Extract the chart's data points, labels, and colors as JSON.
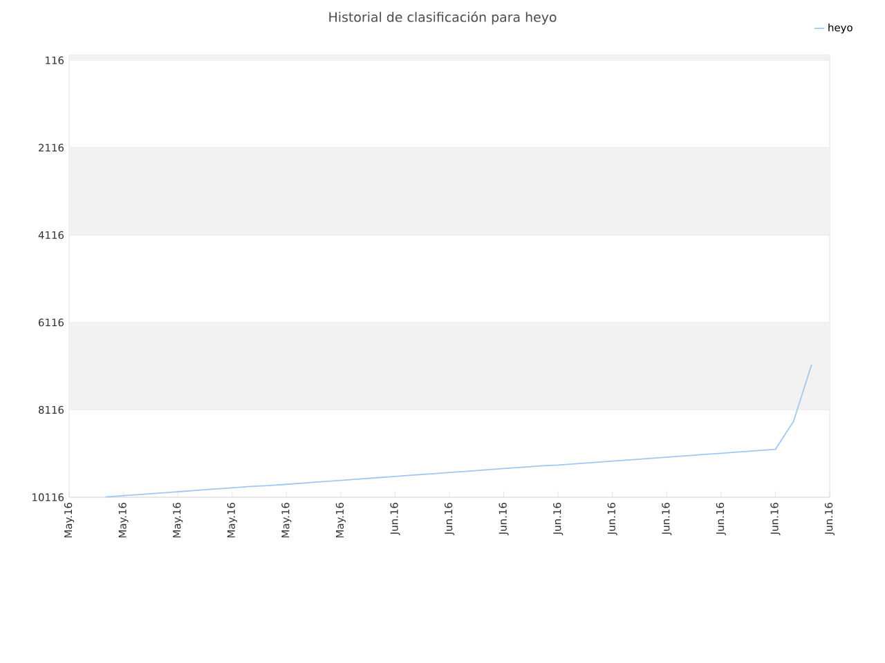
{
  "chart_data": {
    "type": "line",
    "title": "Historial de clasificación para heyo",
    "categories": [
      "May.16",
      null,
      null,
      "May.16",
      null,
      null,
      "May.16",
      null,
      null,
      "May.16",
      null,
      null,
      "May.16",
      null,
      null,
      "May.16",
      null,
      null,
      "Jun.16",
      null,
      null,
      "Jun.16",
      null,
      null,
      "Jun.16",
      null,
      null,
      "Jun.16",
      null,
      null,
      "Jun.16",
      null,
      null,
      "Jun.16",
      null,
      null,
      "Jun.16",
      null,
      null,
      "Jun.16",
      null,
      null,
      "Jun.16"
    ],
    "series": [
      {
        "name": "heyo",
        "color": "#9fc8f2",
        "values": [
          null,
          null,
          10110,
          10080,
          10050,
          10020,
          9990,
          9960,
          9930,
          9900,
          9870,
          9850,
          9820,
          9790,
          9760,
          9730,
          9700,
          9670,
          9640,
          9610,
          9580,
          9550,
          9520,
          9490,
          9460,
          9430,
          9400,
          9380,
          9350,
          9320,
          9290,
          9260,
          9230,
          9200,
          9170,
          9140,
          9110,
          9080,
          9050,
          9020,
          8380,
          7080,
          null
        ]
      }
    ],
    "ylim": [
      10116,
      0
    ],
    "yticks": [
      116,
      2116,
      4116,
      6116,
      8116,
      10116
    ],
    "bands": [
      {
        "axis": "y",
        "from": 0,
        "to": 116,
        "color": "#f2f2f2"
      },
      {
        "axis": "y",
        "from": 2116,
        "to": 4116,
        "color": "#f2f2f2"
      },
      {
        "axis": "y",
        "from": 6116,
        "to": 8116,
        "color": "#f2f2f2"
      }
    ],
    "grid": "y",
    "legend": "top right",
    "marker": "none",
    "line_style": "solid"
  }
}
